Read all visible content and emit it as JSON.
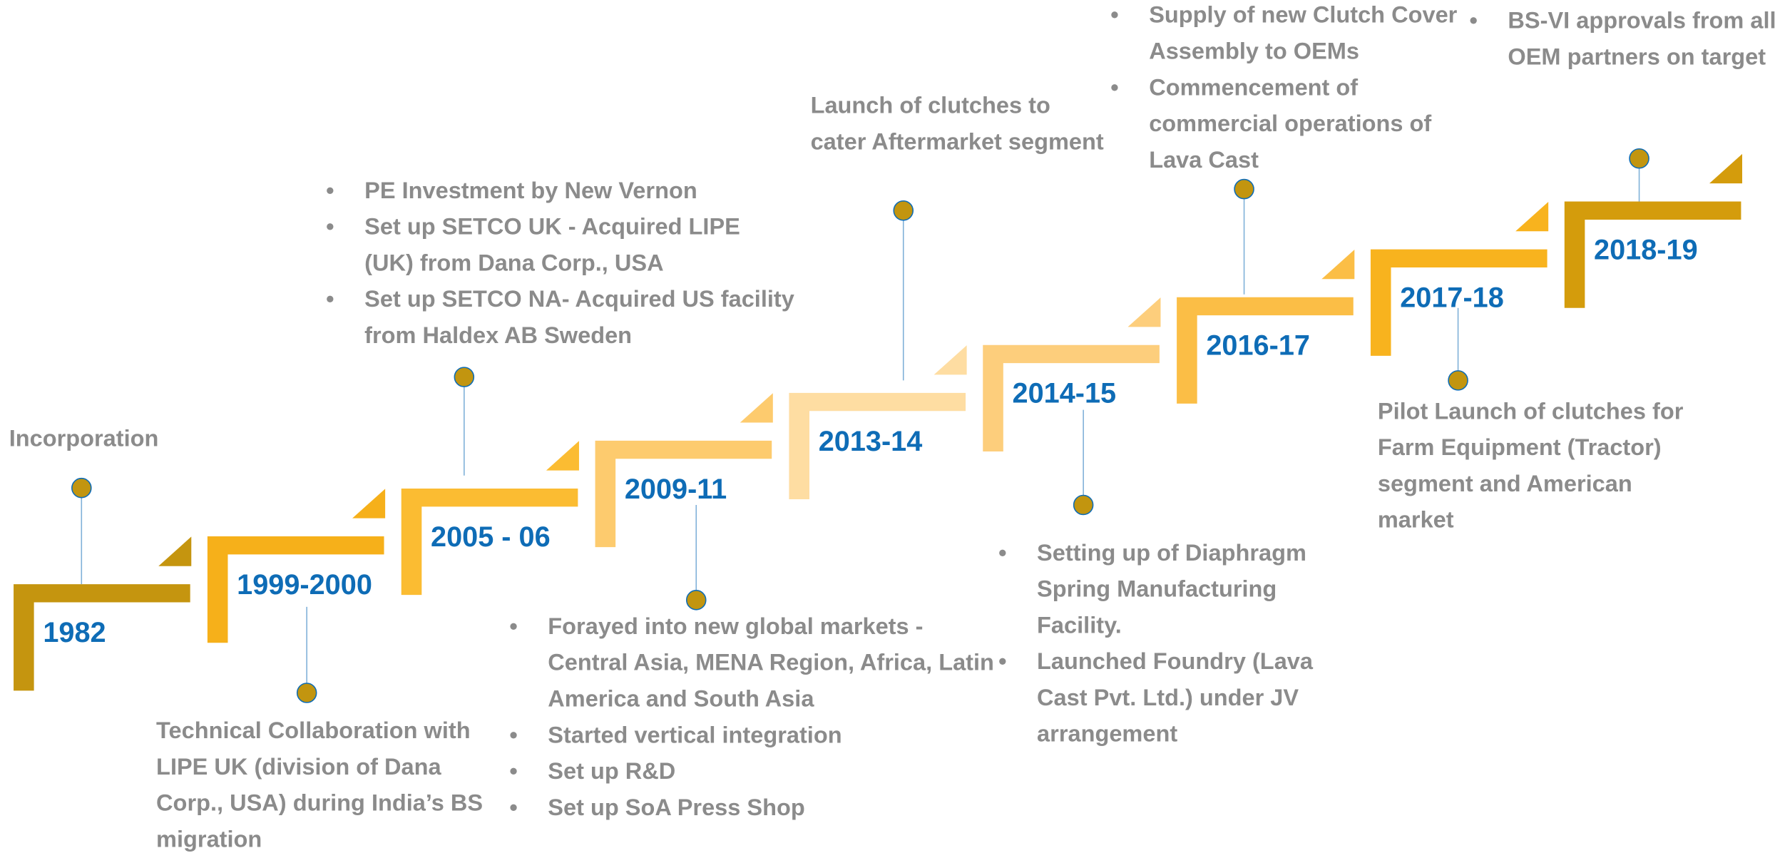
{
  "milestones": [
    {
      "year": "1982",
      "text": "Incorporation"
    },
    {
      "year": "1999-2000",
      "text": "Technical Collaboration with LIPE UK (division of Dana Corp., USA) during India’s BS migration"
    },
    {
      "year": "2005 - 06",
      "bullets": [
        "PE Investment by New Vernon",
        "Set up SETCO UK - Acquired LIPE (UK)  from Dana Corp., USA",
        "Set up SETCO NA- Acquired US facility from Haldex AB Sweden"
      ]
    },
    {
      "year": "2009-11",
      "bullets": [
        "Forayed into new global markets - Central Asia, MENA Region, Africa, Latin America and South Asia",
        "Started vertical integration",
        "Set up R&D",
        "Set up SoA Press Shop"
      ]
    },
    {
      "year": "2013-14",
      "text": "Launch of clutches to cater Aftermarket segment"
    },
    {
      "year": "2014-15",
      "bullets": [
        "Setting up of Diaphragm Spring Manufacturing Facility.",
        " Launched Foundry (Lava Cast Pvt. Ltd.) under JV arrangement"
      ]
    },
    {
      "year": "2016-17",
      "bullets": [
        "Supply of new Clutch Cover Assembly to OEMs",
        "Commencement of commercial operations of Lava Cast"
      ]
    },
    {
      "year": "2017-18",
      "text": "Pilot Launch of clutches for Farm Equipment (Tractor) segment and American market"
    },
    {
      "year": "2018-19",
      "bullets": [
        "BS-VI approvals from all OEM partners on target"
      ]
    }
  ]
}
